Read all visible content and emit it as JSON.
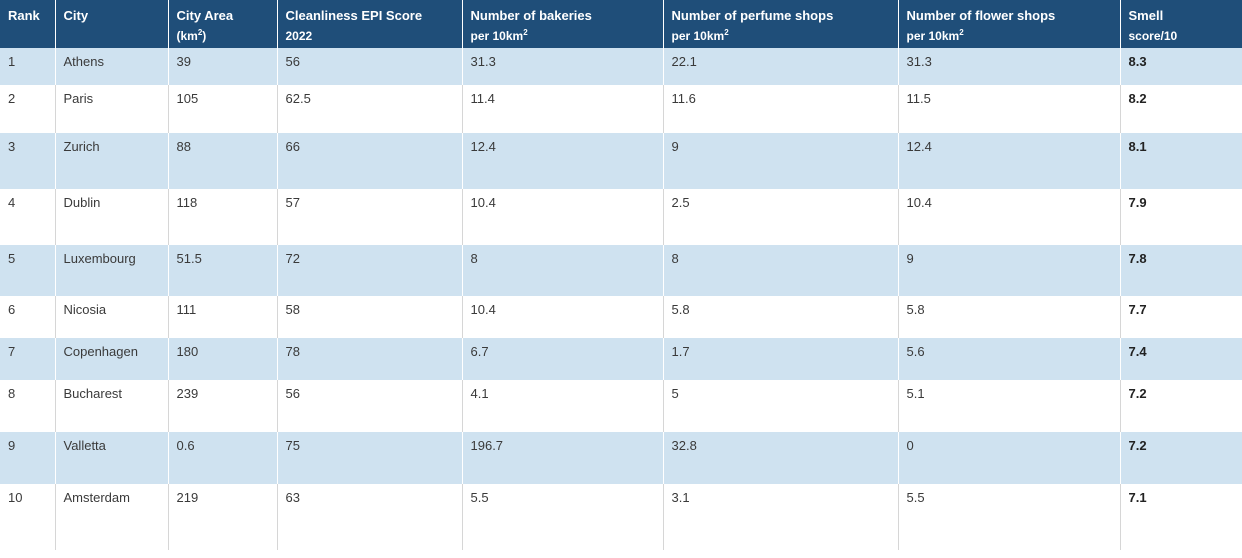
{
  "table": {
    "headers": {
      "rank": {
        "line1": "Rank",
        "line2": ""
      },
      "city": {
        "line1": "City",
        "line2": ""
      },
      "area": {
        "line1": "City Area",
        "line2": "(km",
        "line2_sup": "2",
        "line2_end": ")"
      },
      "clean": {
        "line1": "Cleanliness EPI Score",
        "line2": "2022"
      },
      "bakeries": {
        "line1": "Number of bakeries",
        "line2": "per 10km",
        "line2_sup": "2"
      },
      "perfume": {
        "line1": "Number of perfume shops",
        "line2": "per 10km",
        "line2_sup": "2"
      },
      "flower": {
        "line1": "Number of flower shops",
        "line2": "per 10km",
        "line2_sup": "2"
      },
      "smell": {
        "line1": "Smell",
        "line2": "score/10"
      }
    },
    "rows": [
      {
        "rank": "1",
        "city": "Athens",
        "area": "39",
        "clean": "56",
        "bakeries": "31.3",
        "perfume": "22.1",
        "flower": "31.3",
        "smell": "8.3"
      },
      {
        "rank": "2",
        "city": "Paris",
        "area": "105",
        "clean": "62.5",
        "bakeries": "11.4",
        "perfume": "11.6",
        "flower": "11.5",
        "smell": "8.2"
      },
      {
        "rank": "3",
        "city": "Zurich",
        "area": "88",
        "clean": "66",
        "bakeries": "12.4",
        "perfume": "9",
        "flower": "12.4",
        "smell": "8.1"
      },
      {
        "rank": "4",
        "city": "Dublin",
        "area": "118",
        "clean": "57",
        "bakeries": "10.4",
        "perfume": "2.5",
        "flower": "10.4",
        "smell": "7.9"
      },
      {
        "rank": "5",
        "city": "Luxembourg",
        "area": "51.5",
        "clean": "72",
        "bakeries": "8",
        "perfume": "8",
        "flower": "9",
        "smell": "7.8"
      },
      {
        "rank": "6",
        "city": "Nicosia",
        "area": "111",
        "clean": "58",
        "bakeries": "10.4",
        "perfume": "5.8",
        "flower": "5.8",
        "smell": "7.7"
      },
      {
        "rank": "7",
        "city": "Copenhagen",
        "area": "180",
        "clean": "78",
        "bakeries": "6.7",
        "perfume": "1.7",
        "flower": "5.6",
        "smell": "7.4"
      },
      {
        "rank": "8",
        "city": "Bucharest",
        "area": "239",
        "clean": "56",
        "bakeries": "4.1",
        "perfume": "5",
        "flower": "5.1",
        "smell": "7.2"
      },
      {
        "rank": "9",
        "city": "Valletta",
        "area": "0.6",
        "clean": "75",
        "bakeries": "196.7",
        "perfume": "32.8",
        "flower": "0",
        "smell": "7.2"
      },
      {
        "rank": "10",
        "city": "Amsterdam",
        "area": "219",
        "clean": "63",
        "bakeries": "5.5",
        "perfume": "3.1",
        "flower": "5.5",
        "smell": "7.1"
      }
    ]
  },
  "colors": {
    "header_bg": "#1f4e79",
    "header_text": "#ffffff",
    "band_row_bg": "#cfe2f0",
    "plain_row_bg": "#ffffff"
  }
}
